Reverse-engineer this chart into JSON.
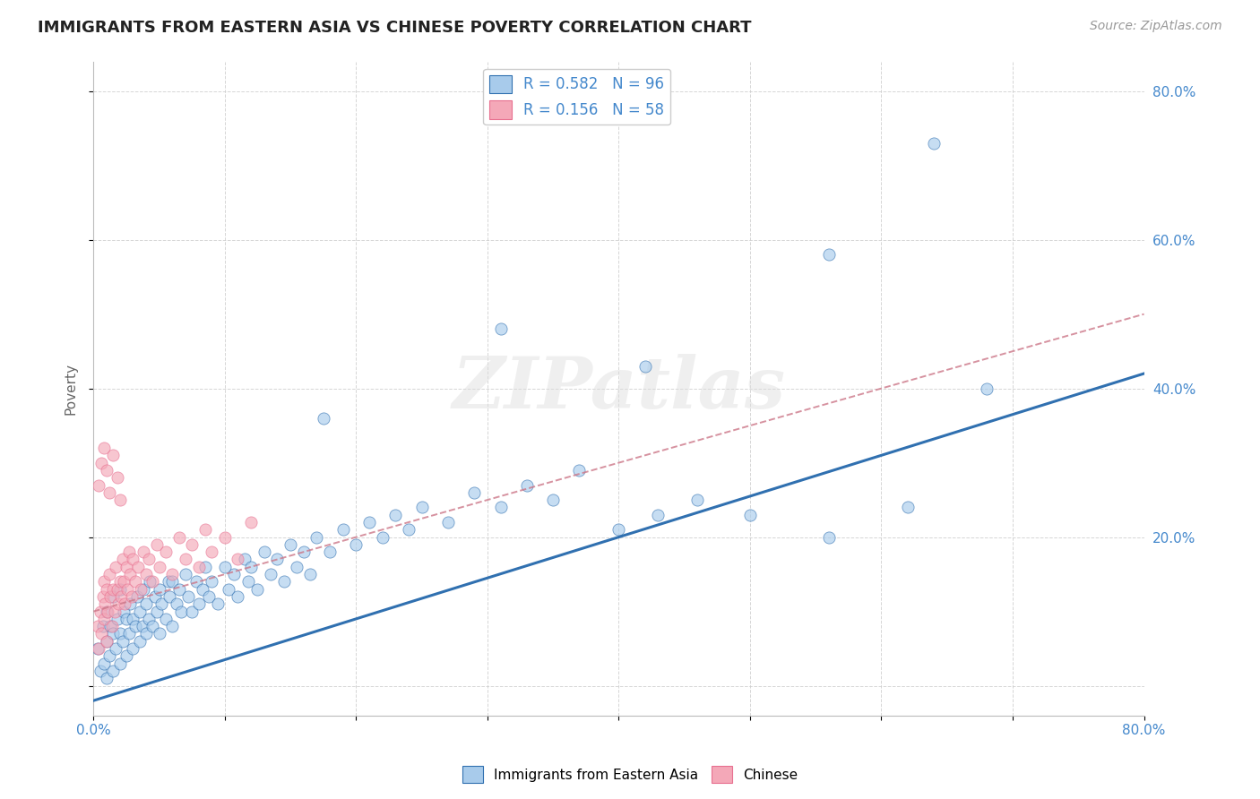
{
  "title": "IMMIGRANTS FROM EASTERN ASIA VS CHINESE POVERTY CORRELATION CHART",
  "source": "Source: ZipAtlas.com",
  "ylabel": "Poverty",
  "legend_label1": "Immigrants from Eastern Asia",
  "legend_label2": "Chinese",
  "watermark": "ZIPatlas",
  "r1": 0.582,
  "n1": 96,
  "r2": 0.156,
  "n2": 58,
  "color_blue": "#A8CBEB",
  "color_pink": "#F4A8B8",
  "color_blue_line": "#3070B0",
  "color_pink_line": "#E87090",
  "color_text_blue": "#4488CC",
  "xlim": [
    0.0,
    0.8
  ],
  "ylim": [
    -0.04,
    0.84
  ],
  "blue_line_x0": 0.0,
  "blue_line_y0": -0.02,
  "blue_line_x1": 0.8,
  "blue_line_y1": 0.42,
  "pink_line_x0": 0.0,
  "pink_line_y0": 0.1,
  "pink_line_x1": 0.8,
  "pink_line_y1": 0.5,
  "blue_scatter_x": [
    0.003,
    0.005,
    0.007,
    0.008,
    0.01,
    0.01,
    0.01,
    0.012,
    0.013,
    0.015,
    0.015,
    0.015,
    0.017,
    0.018,
    0.02,
    0.02,
    0.02,
    0.022,
    0.023,
    0.025,
    0.025,
    0.027,
    0.028,
    0.03,
    0.03,
    0.032,
    0.033,
    0.035,
    0.035,
    0.037,
    0.038,
    0.04,
    0.04,
    0.042,
    0.043,
    0.045,
    0.047,
    0.048,
    0.05,
    0.05,
    0.052,
    0.055,
    0.057,
    0.058,
    0.06,
    0.06,
    0.063,
    0.065,
    0.067,
    0.07,
    0.072,
    0.075,
    0.078,
    0.08,
    0.083,
    0.085,
    0.088,
    0.09,
    0.095,
    0.1,
    0.103,
    0.107,
    0.11,
    0.115,
    0.118,
    0.12,
    0.125,
    0.13,
    0.135,
    0.14,
    0.145,
    0.15,
    0.155,
    0.16,
    0.165,
    0.17,
    0.18,
    0.19,
    0.2,
    0.21,
    0.22,
    0.23,
    0.24,
    0.25,
    0.27,
    0.29,
    0.31,
    0.33,
    0.35,
    0.37,
    0.4,
    0.43,
    0.46,
    0.5,
    0.56,
    0.62
  ],
  "blue_scatter_y": [
    0.05,
    0.02,
    0.08,
    0.03,
    0.01,
    0.06,
    0.1,
    0.04,
    0.08,
    0.02,
    0.07,
    0.12,
    0.05,
    0.09,
    0.03,
    0.07,
    0.13,
    0.06,
    0.1,
    0.04,
    0.09,
    0.07,
    0.11,
    0.05,
    0.09,
    0.08,
    0.12,
    0.06,
    0.1,
    0.08,
    0.13,
    0.07,
    0.11,
    0.09,
    0.14,
    0.08,
    0.12,
    0.1,
    0.07,
    0.13,
    0.11,
    0.09,
    0.14,
    0.12,
    0.08,
    0.14,
    0.11,
    0.13,
    0.1,
    0.15,
    0.12,
    0.1,
    0.14,
    0.11,
    0.13,
    0.16,
    0.12,
    0.14,
    0.11,
    0.16,
    0.13,
    0.15,
    0.12,
    0.17,
    0.14,
    0.16,
    0.13,
    0.18,
    0.15,
    0.17,
    0.14,
    0.19,
    0.16,
    0.18,
    0.15,
    0.2,
    0.18,
    0.21,
    0.19,
    0.22,
    0.2,
    0.23,
    0.21,
    0.24,
    0.22,
    0.26,
    0.24,
    0.27,
    0.25,
    0.29,
    0.21,
    0.23,
    0.25,
    0.23,
    0.2,
    0.24
  ],
  "blue_outliers_x": [
    0.175,
    0.31,
    0.42,
    0.56,
    0.64,
    0.68
  ],
  "blue_outliers_y": [
    0.36,
    0.48,
    0.43,
    0.58,
    0.73,
    0.4
  ],
  "pink_scatter_x": [
    0.003,
    0.004,
    0.005,
    0.006,
    0.007,
    0.008,
    0.008,
    0.009,
    0.01,
    0.01,
    0.011,
    0.012,
    0.013,
    0.014,
    0.015,
    0.016,
    0.017,
    0.018,
    0.019,
    0.02,
    0.021,
    0.022,
    0.023,
    0.024,
    0.025,
    0.026,
    0.027,
    0.028,
    0.029,
    0.03,
    0.032,
    0.034,
    0.036,
    0.038,
    0.04,
    0.042,
    0.045,
    0.048,
    0.05,
    0.055,
    0.06,
    0.065,
    0.07,
    0.075,
    0.08,
    0.085,
    0.09,
    0.1,
    0.11,
    0.12,
    0.004,
    0.006,
    0.008,
    0.01,
    0.012,
    0.015,
    0.018,
    0.02
  ],
  "pink_scatter_y": [
    0.08,
    0.05,
    0.1,
    0.07,
    0.12,
    0.09,
    0.14,
    0.11,
    0.06,
    0.13,
    0.1,
    0.15,
    0.12,
    0.08,
    0.13,
    0.1,
    0.16,
    0.13,
    0.11,
    0.14,
    0.12,
    0.17,
    0.14,
    0.11,
    0.16,
    0.13,
    0.18,
    0.15,
    0.12,
    0.17,
    0.14,
    0.16,
    0.13,
    0.18,
    0.15,
    0.17,
    0.14,
    0.19,
    0.16,
    0.18,
    0.15,
    0.2,
    0.17,
    0.19,
    0.16,
    0.21,
    0.18,
    0.2,
    0.17,
    0.22,
    0.27,
    0.3,
    0.32,
    0.29,
    0.26,
    0.31,
    0.28,
    0.25
  ]
}
